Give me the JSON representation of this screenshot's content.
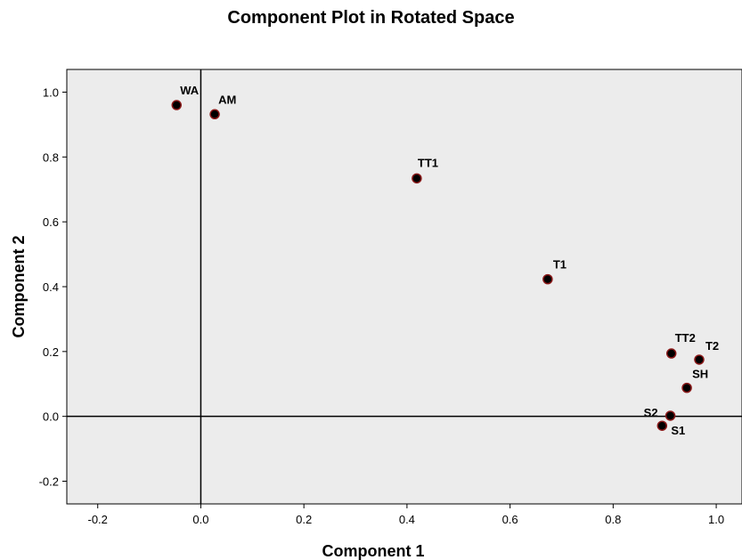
{
  "chart_data": {
    "type": "scatter",
    "title": "Component Plot in Rotated Space",
    "xlabel": "Component 1",
    "ylabel": "Component 2",
    "xlim": [
      -0.26,
      1.05
    ],
    "ylim": [
      -0.27,
      1.07
    ],
    "x_ticks": [
      -0.2,
      0.0,
      0.2,
      0.4,
      0.6,
      0.8,
      1.0
    ],
    "x_tick_labels": [
      "-0.2",
      "0.0",
      "0.2",
      "0.4",
      "0.6",
      "0.8",
      "1.0"
    ],
    "y_ticks": [
      -0.2,
      0.0,
      0.2,
      0.4,
      0.6,
      0.8,
      1.0
    ],
    "y_tick_labels": [
      "-0.2",
      "0.0",
      "0.2",
      "0.4",
      "0.6",
      "0.8",
      "1.0"
    ],
    "grid": false,
    "reference_lines": {
      "x": 0.0,
      "y": 0.0
    },
    "colors": {
      "plot_background": "#ececec",
      "marker_fill": "#000000",
      "marker_edge": "#8b1a1a",
      "axis_line": "#000000"
    },
    "points": [
      {
        "label": "WA",
        "x": -0.047,
        "y": 0.96
      },
      {
        "label": "AM",
        "x": 0.027,
        "y": 0.932
      },
      {
        "label": "TT1",
        "x": 0.419,
        "y": 0.734
      },
      {
        "label": "T1",
        "x": 0.673,
        "y": 0.423
      },
      {
        "label": "TT2",
        "x": 0.913,
        "y": 0.194
      },
      {
        "label": "T2",
        "x": 0.967,
        "y": 0.175
      },
      {
        "label": "SH",
        "x": 0.943,
        "y": 0.088
      },
      {
        "label": "S2",
        "x": 0.911,
        "y": 0.002
      },
      {
        "label": "S1",
        "x": 0.895,
        "y": -0.029
      }
    ]
  }
}
